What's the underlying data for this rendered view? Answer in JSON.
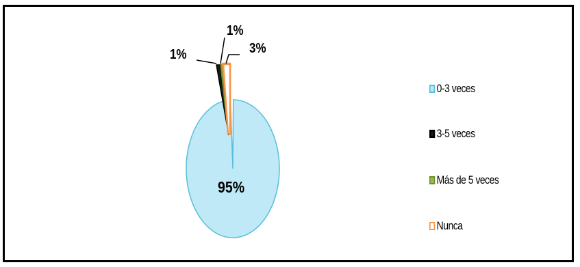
{
  "chart_data": {
    "type": "pie",
    "title": "",
    "slices": [
      {
        "label": "0-3 veces",
        "value": 95,
        "display": "95%",
        "color": "#bfe9f6",
        "border": "#58bfdc"
      },
      {
        "label": "3-5 veces",
        "value": 1,
        "display": "1%",
        "color": "#1a1a1a",
        "border": "#000000"
      },
      {
        "label": "Más de 5 veces",
        "value": 0.5,
        "display": "1%",
        "color": "#9bbb59",
        "border": "#6f8f2f"
      },
      {
        "label": "Nunca",
        "value": 3,
        "display": "3%",
        "color": "#ffffff",
        "border": "#f79646"
      }
    ],
    "legend_position": "right"
  }
}
